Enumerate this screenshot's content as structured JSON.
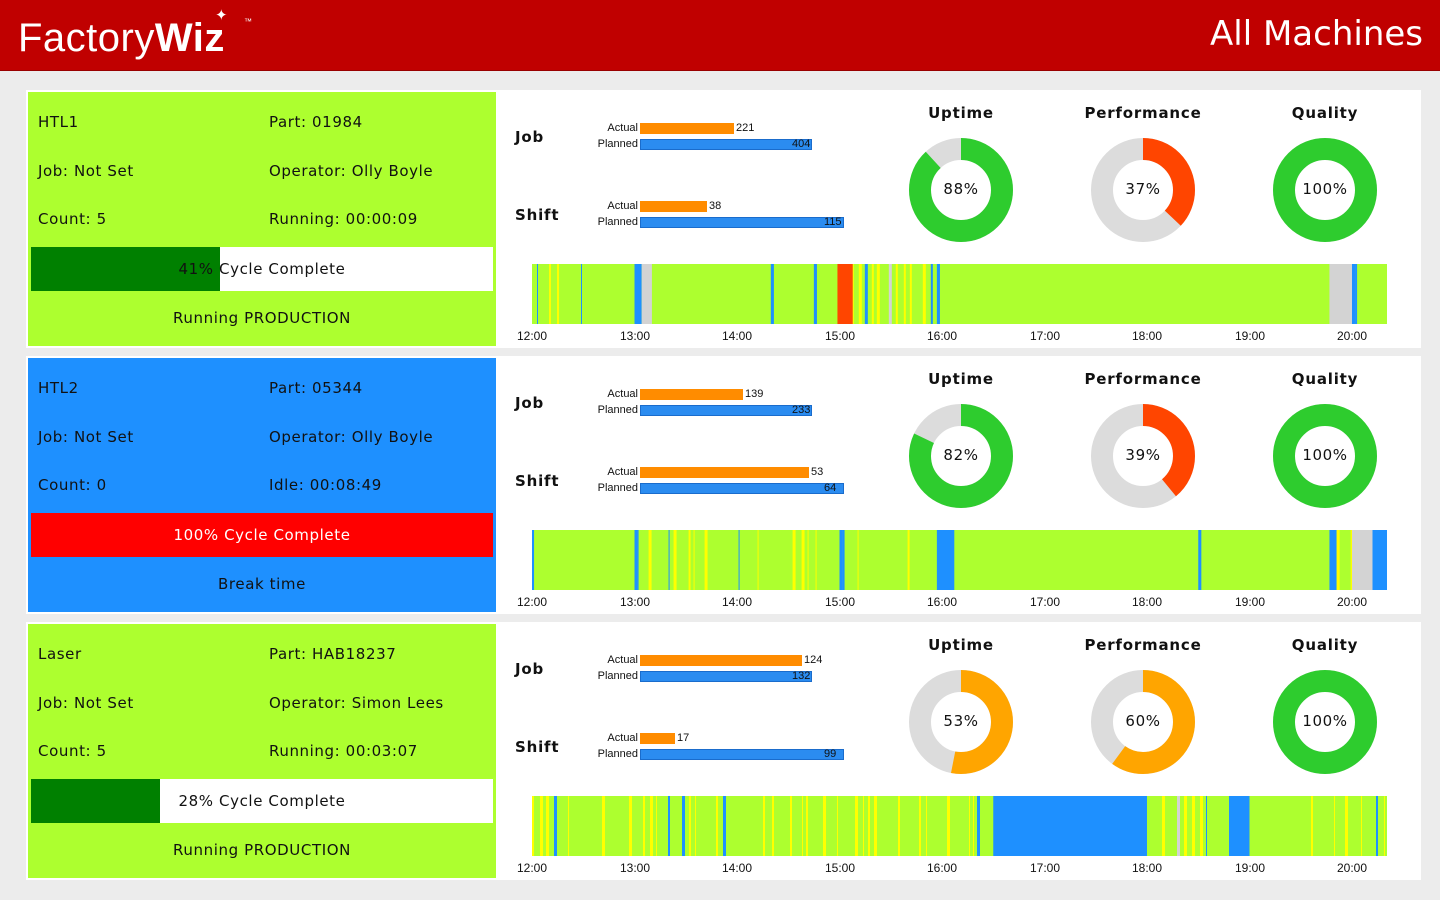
{
  "header": {
    "logo_text_a": "Factory",
    "logo_text_b": "Wiz",
    "logo_tm": "™",
    "title": "All Machines"
  },
  "labels": {
    "job": "Job",
    "shift": "Shift",
    "actual": "Actual",
    "planned": "Planned",
    "uptime": "Uptime",
    "performance": "Performance",
    "quality": "Quality"
  },
  "colors": {
    "production_green": "#adff2f",
    "idle_blue": "#1e90ff",
    "dark_green": "#008000",
    "alarm_red": "#ff0000",
    "gauge_green": "#2ecc2e",
    "gauge_red": "#ff4500",
    "gauge_orange": "#ffa500",
    "gauge_grey": "#dcdcdc",
    "timeline_yellow": "#ffff00",
    "timeline_grey": "#d3d3d3",
    "timeline_red": "#ff4500"
  },
  "timeline_ticks": [
    "12:00",
    "13:00",
    "14:00",
    "15:00",
    "16:00",
    "17:00",
    "18:00",
    "19:00",
    "20:00"
  ],
  "machines": [
    {
      "name": "HTL1",
      "part": "Part: 01984",
      "job": "Job: Not Set",
      "operator": "Operator: Olly Boyle",
      "count": "Count: 5",
      "timer": "Running: 00:00:09",
      "cycle_percent": 41,
      "cycle_text": "41% Cycle Complete",
      "status": "Running PRODUCTION",
      "panel_color": "#adff2f",
      "cycle_fill_color": "#008000",
      "job_actual": 221,
      "job_planned": 404,
      "shift_actual": 38,
      "shift_planned": 115,
      "uptime": 88,
      "uptime_text": "88%",
      "uptime_color": "#2ecc2e",
      "performance": 37,
      "performance_text": "37%",
      "performance_color": "#ff4500",
      "quality": 100,
      "quality_text": "100%",
      "quality_color": "#2ecc2e",
      "timeline_base": "#adff2f",
      "timeline_segments": [
        {
          "start": 0.0,
          "end": 0.55,
          "state": "mixed"
        },
        {
          "start": 1.0,
          "end": 1.07,
          "state": "idle"
        },
        {
          "start": 1.07,
          "end": 1.17,
          "state": "setup"
        },
        {
          "start": 2.33,
          "end": 2.36,
          "state": "idle"
        },
        {
          "start": 2.75,
          "end": 2.78,
          "state": "idle"
        },
        {
          "start": 2.98,
          "end": 3.13,
          "state": "fault"
        },
        {
          "start": 3.13,
          "end": 3.95,
          "state": "mixed"
        },
        {
          "start": 3.95,
          "end": 3.98,
          "state": "idle"
        },
        {
          "start": 7.78,
          "end": 8.0,
          "state": "setup"
        },
        {
          "start": 8.0,
          "end": 8.03,
          "state": "idle"
        },
        {
          "start": 8.03,
          "end": 8.35,
          "state": "mixed"
        }
      ]
    },
    {
      "name": "HTL2",
      "part": "Part: 05344",
      "job": "Job: Not Set",
      "operator": "Operator: Olly Boyle",
      "count": "Count: 0",
      "timer": "Idle: 00:08:49",
      "cycle_percent": 100,
      "cycle_text": "100% Cycle Complete",
      "status": "Break time",
      "panel_color": "#1e90ff",
      "cycle_fill_color": "#ff0000",
      "job_actual": 139,
      "job_planned": 233,
      "shift_actual": 53,
      "shift_planned": 64,
      "uptime": 82,
      "uptime_text": "82%",
      "uptime_color": "#2ecc2e",
      "performance": 39,
      "performance_text": "39%",
      "performance_color": "#ff4500",
      "quality": 100,
      "quality_text": "100%",
      "quality_color": "#2ecc2e",
      "timeline_base": "#adff2f",
      "timeline_segments": [
        {
          "start": 0.0,
          "end": 0.02,
          "state": "idle"
        },
        {
          "start": 1.0,
          "end": 1.03,
          "state": "idle"
        },
        {
          "start": 1.03,
          "end": 2.95,
          "state": "mixed"
        },
        {
          "start": 3.0,
          "end": 3.03,
          "state": "idle"
        },
        {
          "start": 3.03,
          "end": 3.95,
          "state": "mixed"
        },
        {
          "start": 3.95,
          "end": 4.12,
          "state": "idle"
        },
        {
          "start": 6.5,
          "end": 6.53,
          "state": "idle"
        },
        {
          "start": 7.78,
          "end": 7.85,
          "state": "idle"
        },
        {
          "start": 7.85,
          "end": 8.0,
          "state": "mixed"
        },
        {
          "start": 8.0,
          "end": 8.2,
          "state": "setup"
        },
        {
          "start": 8.2,
          "end": 8.35,
          "state": "idle"
        }
      ]
    },
    {
      "name": "Laser",
      "part": "Part: HAB18237",
      "job": "Job: Not Set",
      "operator": "Operator: Simon Lees",
      "count": "Count: 5",
      "timer": "Running: 00:03:07",
      "cycle_percent": 28,
      "cycle_text": "28% Cycle Complete",
      "status": "Running PRODUCTION",
      "panel_color": "#adff2f",
      "cycle_fill_color": "#008000",
      "job_actual": 124,
      "job_planned": 132,
      "shift_actual": 17,
      "shift_planned": 99,
      "uptime": 53,
      "uptime_text": "53%",
      "uptime_color": "#ffa500",
      "performance": 60,
      "performance_text": "60%",
      "performance_color": "#ffa500",
      "quality": 100,
      "quality_text": "100%",
      "quality_color": "#2ecc2e",
      "timeline_base": "#adff2f",
      "timeline_segments": [
        {
          "start": 0.0,
          "end": 4.4,
          "state": "mixed"
        },
        {
          "start": 4.5,
          "end": 6.0,
          "state": "idle"
        },
        {
          "start": 6.0,
          "end": 6.8,
          "state": "mixed"
        },
        {
          "start": 6.8,
          "end": 7.0,
          "state": "idle"
        },
        {
          "start": 7.0,
          "end": 7.6,
          "state": "base"
        },
        {
          "start": 7.6,
          "end": 8.35,
          "state": "mixed"
        }
      ]
    }
  ]
}
